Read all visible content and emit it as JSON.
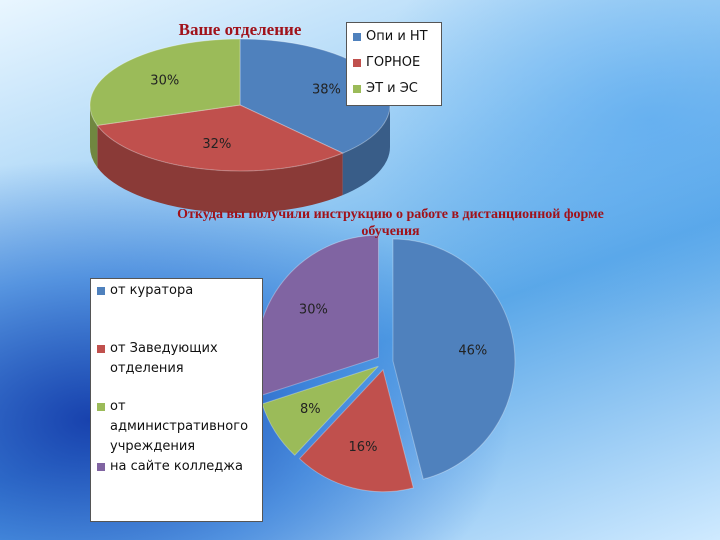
{
  "chart_data": [
    {
      "type": "pie3d",
      "title": "Ваше отделение",
      "categories": [
        "Опи и НТ",
        "ГОРНОЕ",
        "ЭТ и ЭС"
      ],
      "values": [
        38,
        32,
        30
      ],
      "value_labels": [
        "38%",
        "32%",
        "30%"
      ],
      "colors": [
        "#4f81bd",
        "#c0504d",
        "#9bbb59"
      ]
    },
    {
      "type": "pie",
      "title": "Откуда вы получили инструкцию  о работе в дистанционной форме обучения",
      "categories": [
        "от куратора",
        "от Заведующих отделения",
        "от административного учреждения",
        "на сайте колледжа"
      ],
      "values": [
        46,
        16,
        8,
        30
      ],
      "value_labels": [
        "46%",
        "16%",
        "8%",
        "30%"
      ],
      "colors": [
        "#4f81bd",
        "#c0504d",
        "#9bbb59",
        "#8064a2"
      ]
    }
  ]
}
